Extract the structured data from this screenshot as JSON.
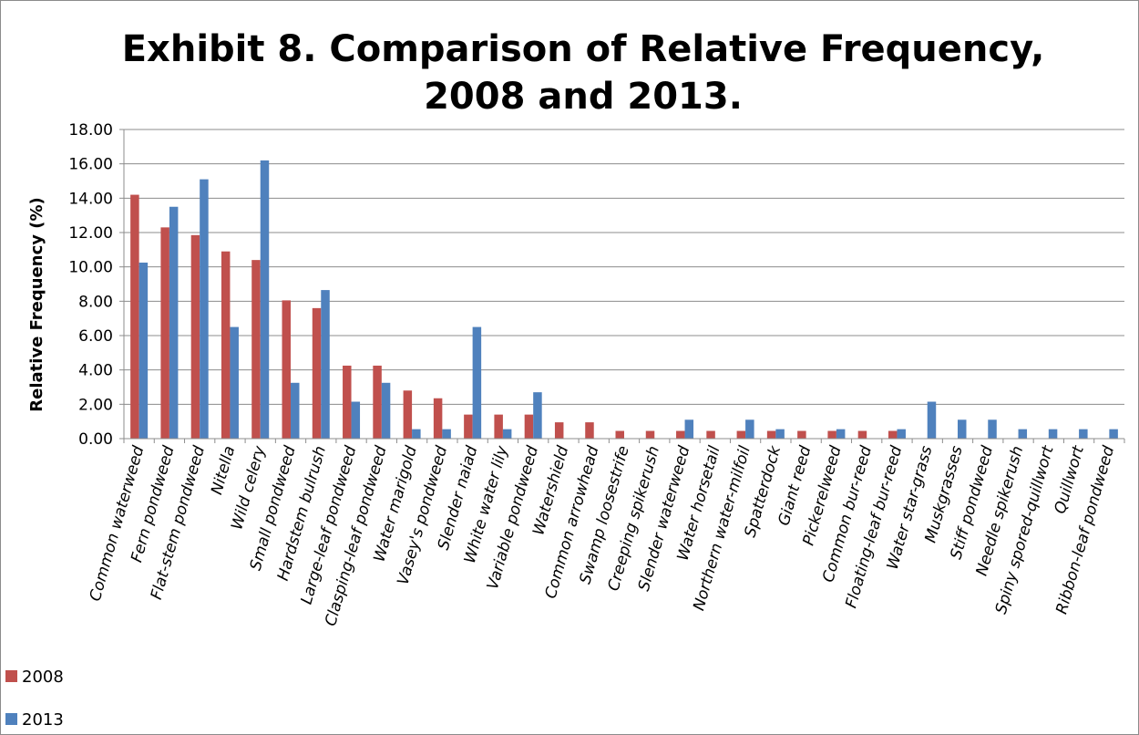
{
  "chart_data": {
    "type": "bar",
    "title_lines": [
      "Exhibit 8. Comparison of Relative Frequency,",
      "2008 and 2013."
    ],
    "xlabel": "",
    "ylabel": "Relative Frequency (%)",
    "ylim": [
      0,
      18
    ],
    "yticks": [
      "0.00",
      "2.00",
      "4.00",
      "6.00",
      "8.00",
      "10.00",
      "12.00",
      "14.00",
      "16.00",
      "18.00"
    ],
    "grid": true,
    "legend_position": "bottom-left",
    "categories": [
      "Common waterweed",
      "Fern pondweed",
      "Flat-stem pondweed",
      "Nitella",
      "Wild celery",
      "Small pondweed",
      "Hardstem bulrush",
      "Large-leaf pondweed",
      "Clasping-leaf pondweed",
      "Water marigold",
      "Vasey's pondweed",
      "Slender naiad",
      "White water lily",
      "Variable pondweed",
      "Watershield",
      "Common arrowhead",
      "Swamp loosestrife",
      "Creeping spikerush",
      "Slender waterweed",
      "Water horsetail",
      "Northern water-milfoil",
      "Spatterdock",
      "Giant reed",
      "Pickerelweed",
      "Common bur-reed",
      "Floating-leaf bur-reed",
      "Water star-grass",
      "Muskgrasses",
      "Stiff pondweed",
      "Needle spikerush",
      "Spiny spored-quillwort",
      "Quillwort",
      "Ribbon-leaf pondweed"
    ],
    "series": [
      {
        "name": "2008",
        "color": "#c0504d",
        "values": [
          14.2,
          12.3,
          11.85,
          10.9,
          10.4,
          8.05,
          7.6,
          4.25,
          4.25,
          2.8,
          2.35,
          1.4,
          1.4,
          1.4,
          0.95,
          0.95,
          0.45,
          0.45,
          0.45,
          0.45,
          0.45,
          0.45,
          0.45,
          0.45,
          0.45,
          0.45,
          0,
          0,
          0,
          0,
          0,
          0,
          0
        ]
      },
      {
        "name": "2013",
        "color": "#4f81bd",
        "values": [
          10.25,
          13.5,
          15.1,
          6.5,
          16.2,
          3.25,
          8.65,
          2.15,
          3.25,
          0.55,
          0.55,
          6.5,
          0.55,
          2.7,
          0,
          0,
          0,
          0,
          1.1,
          0,
          1.1,
          0.55,
          0,
          0.55,
          0,
          0.55,
          2.15,
          1.1,
          1.1,
          0.55,
          0.55,
          0.55,
          0.55
        ]
      }
    ]
  }
}
